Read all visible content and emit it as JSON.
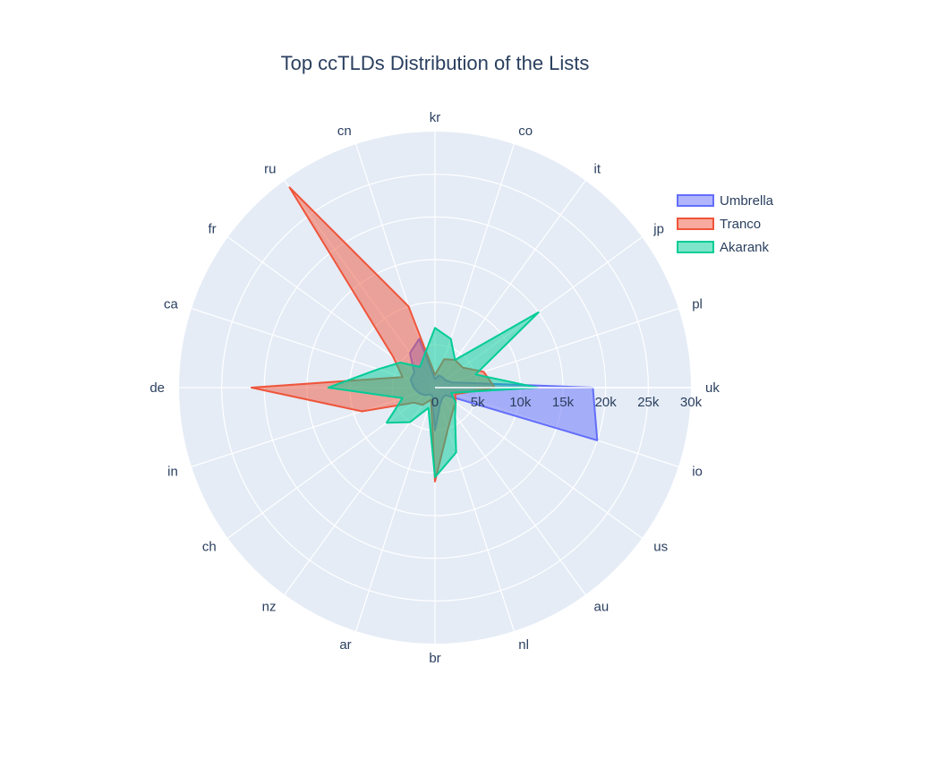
{
  "chart_data": {
    "type": "radar",
    "title": "Top ccTLDs Distribution of the Lists",
    "categories": [
      "uk",
      "pl",
      "jp",
      "it",
      "co",
      "kr",
      "cn",
      "ru",
      "fr",
      "ca",
      "de",
      "in",
      "ch",
      "nz",
      "ar",
      "br",
      "nl",
      "au",
      "us",
      "io"
    ],
    "radial_ticks": [
      "0",
      "5k",
      "10k",
      "15k",
      "20k",
      "25k",
      "30k"
    ],
    "radial_range": [
      0,
      30000
    ],
    "legend_position": "top-right",
    "series": [
      {
        "name": "Umbrella",
        "color": "#636efa",
        "values": [
          18500,
          2000,
          1500,
          1500,
          1500,
          1000,
          6000,
          5000,
          3000,
          3000,
          2500,
          2000,
          1500,
          1000,
          1000,
          5000,
          2000,
          1500,
          1500,
          20000
        ]
      },
      {
        "name": "Tranco",
        "color": "#ef553b",
        "values": [
          7000,
          6000,
          4000,
          4000,
          3500,
          1500,
          10000,
          29000,
          6000,
          4000,
          21500,
          9000,
          3000,
          2500,
          1500,
          11000,
          5000,
          3500,
          3000,
          2500
        ]
      },
      {
        "name": "Akarank",
        "color": "#00cc96",
        "values": [
          12000,
          5000,
          15000,
          4000,
          6000,
          7000,
          4000,
          3000,
          5000,
          7000,
          12500,
          4000,
          7000,
          5000,
          2500,
          10500,
          8000,
          4000,
          3000,
          2000
        ]
      }
    ]
  }
}
